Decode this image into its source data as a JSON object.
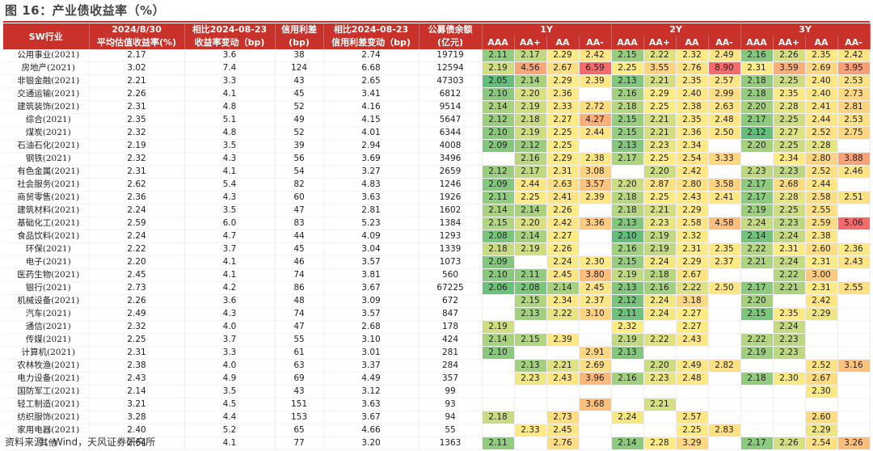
{
  "title": "图 16：产业债收益率（%）",
  "source": "资料来源：Wind，天风证券研究所",
  "colors": {
    "header_bg": "#c8322a",
    "header_text": "#ffffff",
    "scale_low": "#63be7b",
    "scale_mid": "#ffeb84",
    "scale_high": "#f8696b"
  },
  "headers": {
    "sw": "SW行业",
    "date_top": "2024/8/30",
    "date_sub": "平均估值收益率(%)",
    "cmp1_top": "相比2024-08-23",
    "cmp1_sub": "收益率变动（bp)",
    "spread_top": "信用利差",
    "spread_sub": "(bp)",
    "cmp2_top": "相比2024-08-23",
    "cmp2_sub": "信用利差变动（bp)",
    "bal_top": "公募债余额",
    "bal_sub": "(亿元)",
    "groups": [
      "1Y",
      "2Y",
      "3Y"
    ],
    "ratings": [
      "AAA",
      "AA+",
      "AA",
      "AA-"
    ]
  },
  "rows": [
    {
      "name": "公用事业(2021)",
      "y": "2.17",
      "d1": "3.6",
      "s": "38",
      "d2": "2.74",
      "b": "19719",
      "y1": [
        "2.11",
        "2.17",
        "2.29",
        "2.42"
      ],
      "y2": [
        "2.15",
        "2.22",
        "2.32",
        "2.49"
      ],
      "y3": [
        "2.16",
        "2.26",
        "2.35",
        "2.42"
      ]
    },
    {
      "name": "房地产(2021)",
      "y": "3.02",
      "d1": "7.4",
      "s": "124",
      "d2": "6.68",
      "b": "12594",
      "y1": [
        "2.19",
        "4.56",
        "2.67",
        "6.59"
      ],
      "y2": [
        "2.25",
        "3.55",
        "2.76",
        "8.90"
      ],
      "y3": [
        "2.31",
        "3.59",
        "2.69",
        "3.95"
      ]
    },
    {
      "name": "非银金融(2021)",
      "y": "2.21",
      "d1": "3.3",
      "s": "43",
      "d2": "2.65",
      "b": "47303",
      "y1": [
        "2.05",
        "2.14",
        "2.29",
        "2.39"
      ],
      "y2": [
        "2.13",
        "2.21",
        "2.35",
        "2.57"
      ],
      "y3": [
        "2.18",
        "2.25",
        "2.40",
        "2.53"
      ]
    },
    {
      "name": "交通运输(2021)",
      "y": "2.26",
      "d1": "4.1",
      "s": "45",
      "d2": "3.41",
      "b": "6812",
      "y1": [
        "2.10",
        "2.20",
        "2.36",
        ""
      ],
      "y2": [
        "2.16",
        "2.29",
        "2.40",
        "2.99"
      ],
      "y3": [
        "2.18",
        "2.35",
        "2.40",
        "2.73"
      ]
    },
    {
      "name": "建筑装饰(2021)",
      "y": "2.31",
      "d1": "4.8",
      "s": "52",
      "d2": "4.16",
      "b": "9514",
      "y1": [
        "2.14",
        "2.19",
        "2.33",
        "2.72"
      ],
      "y2": [
        "2.18",
        "2.25",
        "2.38",
        "2.63"
      ],
      "y3": [
        "2.20",
        "2.28",
        "2.41",
        "2.81"
      ]
    },
    {
      "name": "综合(2021)",
      "y": "2.35",
      "d1": "5.1",
      "s": "49",
      "d2": "4.15",
      "b": "5647",
      "y1": [
        "2.12",
        "2.18",
        "2.27",
        "4.27"
      ],
      "y2": [
        "2.15",
        "2.21",
        "2.35",
        "2.48"
      ],
      "y3": [
        "2.17",
        "2.25",
        "2.44",
        "2.53"
      ]
    },
    {
      "name": "煤炭(2021)",
      "y": "2.32",
      "d1": "4.8",
      "s": "52",
      "d2": "4.01",
      "b": "6344",
      "y1": [
        "2.10",
        "2.19",
        "2.25",
        "2.44"
      ],
      "y2": [
        "2.15",
        "2.21",
        "2.36",
        "2.50"
      ],
      "y3": [
        "2.12",
        "2.27",
        "2.52",
        "2.75"
      ]
    },
    {
      "name": "石油石化(2021)",
      "y": "2.19",
      "d1": "3.5",
      "s": "39",
      "d2": "2.94",
      "b": "4008",
      "y1": [
        "2.09",
        "2.12",
        "2.25",
        ""
      ],
      "y2": [
        "2.13",
        "2.23",
        "2.34",
        ""
      ],
      "y3": [
        "2.20",
        "2.25",
        "2.28",
        ""
      ]
    },
    {
      "name": "钢铁(2021)",
      "y": "2.32",
      "d1": "4.3",
      "s": "56",
      "d2": "3.69",
      "b": "3496",
      "y1": [
        "",
        "2.16",
        "2.29",
        "2.38"
      ],
      "y2": [
        "2.17",
        "2.25",
        "2.54",
        "3.33"
      ],
      "y3": [
        "",
        "2.34",
        "2.80",
        "3.88"
      ]
    },
    {
      "name": "有色金属(2021)",
      "y": "2.31",
      "d1": "4.1",
      "s": "54",
      "d2": "3.27",
      "b": "2659",
      "y1": [
        "2.12",
        "2.17",
        "2.31",
        "3.08"
      ],
      "y2": [
        "",
        "2.20",
        "2.42",
        ""
      ],
      "y3": [
        "2.23",
        "2.23",
        "2.52",
        "2.46"
      ]
    },
    {
      "name": "社会服务(2021)",
      "y": "2.62",
      "d1": "5.4",
      "s": "82",
      "d2": "4.83",
      "b": "1246",
      "y1": [
        "2.09",
        "2.44",
        "2.63",
        "3.57"
      ],
      "y2": [
        "2.20",
        "2.87",
        "2.80",
        "3.58"
      ],
      "y3": [
        "2.17",
        "2.68",
        "2.44",
        ""
      ]
    },
    {
      "name": "商贸零售(2021)",
      "y": "2.36",
      "d1": "4.3",
      "s": "60",
      "d2": "3.63",
      "b": "1926",
      "y1": [
        "2.11",
        "2.25",
        "2.41",
        "2.39"
      ],
      "y2": [
        "2.18",
        "2.25",
        "2.43",
        "2.41"
      ],
      "y3": [
        "2.17",
        "2.28",
        "2.58",
        "2.51"
      ]
    },
    {
      "name": "建筑材料(2021)",
      "y": "2.24",
      "d1": "3.5",
      "s": "47",
      "d2": "2.81",
      "b": "1602",
      "y1": [
        "2.14",
        "2.14",
        "2.26",
        ""
      ],
      "y2": [
        "2.18",
        "2.21",
        "2.29",
        ""
      ],
      "y3": [
        "2.19",
        "2.25",
        "2.55",
        ""
      ]
    },
    {
      "name": "基础化工(2021)",
      "y": "2.59",
      "d1": "6.0",
      "s": "83",
      "d2": "5.23",
      "b": "1384",
      "y1": [
        "2.15",
        "2.20",
        "2.42",
        "3.36"
      ],
      "y2": [
        "2.13",
        "2.23",
        "2.58",
        "4.58"
      ],
      "y3": [
        "2.24",
        "2.23",
        "2.59",
        "5.06"
      ]
    },
    {
      "name": "食品饮料(2021)",
      "y": "2.24",
      "d1": "4.7",
      "s": "44",
      "d2": "4.09",
      "b": "1293",
      "y1": [
        "2.08",
        "2.14",
        "2.27",
        ""
      ],
      "y2": [
        "2.10",
        "2.19",
        "2.32",
        ""
      ],
      "y3": [
        "2.14",
        "2.24",
        "2.38",
        ""
      ]
    },
    {
      "name": "环保(2021)",
      "y": "2.22",
      "d1": "3.7",
      "s": "45",
      "d2": "3.04",
      "b": "1339",
      "y1": [
        "2.18",
        "2.19",
        "2.26",
        ""
      ],
      "y2": [
        "2.16",
        "2.19",
        "2.31",
        "2.35"
      ],
      "y3": [
        "2.22",
        "2.31",
        "2.60",
        "2.36"
      ]
    },
    {
      "name": "电子(2021)",
      "y": "2.20",
      "d1": "4.1",
      "s": "46",
      "d2": "3.57",
      "b": "1073",
      "y1": [
        "2.09",
        "",
        "2.24",
        "2.30"
      ],
      "y2": [
        "2.15",
        "2.24",
        "2.29",
        "2.37"
      ],
      "y3": [
        "2.21",
        "2.24",
        "2.31",
        "2.43"
      ]
    },
    {
      "name": "医药生物(2021)",
      "y": "2.45",
      "d1": "4.1",
      "s": "74",
      "d2": "3.81",
      "b": "560",
      "y1": [
        "2.10",
        "2.11",
        "2.45",
        "3.80"
      ],
      "y2": [
        "2.19",
        "2.18",
        "2.67",
        ""
      ],
      "y3": [
        "",
        "2.22",
        "3.00",
        ""
      ]
    },
    {
      "name": "银行(2021)",
      "y": "2.73",
      "d1": "4.2",
      "s": "86",
      "d2": "3.67",
      "b": "67225",
      "y1": [
        "2.06",
        "2.08",
        "2.14",
        "2.45"
      ],
      "y2": [
        "2.13",
        "2.16",
        "2.22",
        "2.50"
      ],
      "y3": [
        "2.17",
        "2.21",
        "2.31",
        "2.55"
      ]
    },
    {
      "name": "机械设备(2021)",
      "y": "2.26",
      "d1": "3.6",
      "s": "48",
      "d2": "3.09",
      "b": "672",
      "y1": [
        "",
        "2.15",
        "2.34",
        "2.37"
      ],
      "y2": [
        "2.12",
        "2.24",
        "3.18",
        ""
      ],
      "y3": [
        "2.20",
        "",
        "2.42",
        ""
      ]
    },
    {
      "name": "汽车(2021)",
      "y": "2.49",
      "d1": "4.3",
      "s": "74",
      "d2": "3.57",
      "b": "847",
      "y1": [
        "",
        "2.13",
        "2.22",
        "3.10"
      ],
      "y2": [
        "2.11",
        "2.24",
        "2.27",
        ""
      ],
      "y3": [
        "2.15",
        "2.35",
        "2.29",
        ""
      ]
    },
    {
      "name": "通信(2021)",
      "y": "2.32",
      "d1": "4.0",
      "s": "47",
      "d2": "2.68",
      "b": "178",
      "y1": [
        "2.19",
        "",
        "",
        ""
      ],
      "y2": [
        "2.32",
        "",
        "2.27",
        ""
      ],
      "y3": [
        "",
        "2.24",
        "",
        ""
      ]
    },
    {
      "name": "传媒(2021)",
      "y": "2.25",
      "d1": "3.7",
      "s": "55",
      "d2": "3.10",
      "b": "424",
      "y1": [
        "2.14",
        "2.15",
        "2.39",
        ""
      ],
      "y2": [
        "2.19",
        "2.22",
        "2.43",
        ""
      ],
      "y3": [
        "2.22",
        "2.23",
        "",
        ""
      ]
    },
    {
      "name": "计算机(2021)",
      "y": "2.31",
      "d1": "3.3",
      "s": "61",
      "d2": "3.01",
      "b": "281",
      "y1": [
        "2.10",
        "",
        "",
        "2.91"
      ],
      "y2": [
        "2.13",
        "",
        "",
        ""
      ],
      "y3": [
        "2.19",
        "2.23",
        "",
        ""
      ]
    },
    {
      "name": "农林牧渔(2021)",
      "y": "2.38",
      "d1": "4.0",
      "s": "63",
      "d2": "3.37",
      "b": "284",
      "y1": [
        "",
        "2.13",
        "2.21",
        "2.69"
      ],
      "y2": [
        "",
        "2.20",
        "2.49",
        "2.82"
      ],
      "y3": [
        "",
        "",
        "2.52",
        "3.16"
      ]
    },
    {
      "name": "电力设备(2021)",
      "y": "2.43",
      "d1": "4.9",
      "s": "69",
      "d2": "4.49",
      "b": "357",
      "y1": [
        "",
        "2.23",
        "2.43",
        "3.96"
      ],
      "y2": [
        "2.16",
        "2.23",
        "2.48",
        ""
      ],
      "y3": [
        "2.18",
        "2.30",
        "2.67",
        ""
      ]
    },
    {
      "name": "国防军工(2021)",
      "y": "2.14",
      "d1": "3.5",
      "s": "43",
      "d2": "3.12",
      "b": "99",
      "y1": [
        "",
        "",
        "",
        ""
      ],
      "y2": [
        "",
        "",
        "",
        ""
      ],
      "y3": [
        "",
        "",
        "2.30",
        ""
      ]
    },
    {
      "name": "轻工制造(2021)",
      "y": "3.21",
      "d1": "4.5",
      "s": "151",
      "d2": "3.63",
      "b": "93",
      "y1": [
        "",
        "",
        "",
        "3.68"
      ],
      "y2": [
        "",
        "2.21",
        "",
        ""
      ],
      "y3": [
        "",
        "",
        "",
        ""
      ]
    },
    {
      "name": "纺织服饰(2021)",
      "y": "3.28",
      "d1": "4.4",
      "s": "153",
      "d2": "3.67",
      "b": "94",
      "y1": [
        "2.18",
        "",
        "2.73",
        ""
      ],
      "y2": [
        "2.24",
        "",
        "2.57",
        ""
      ],
      "y3": [
        "",
        "",
        "2.60",
        ""
      ]
    },
    {
      "name": "家用电器(2021)",
      "y": "2.40",
      "d1": "5.2",
      "s": "65",
      "d2": "4.66",
      "b": "55",
      "y1": [
        "",
        "2.33",
        "2.45",
        ""
      ],
      "y2": [
        "",
        "",
        "2.25",
        "2.83"
      ],
      "y3": [
        "",
        "",
        "2.29",
        ""
      ]
    },
    {
      "name": "其他",
      "y": "2.64",
      "d1": "4.1",
      "s": "77",
      "d2": "3.20",
      "b": "1363",
      "y1": [
        "2.11",
        "",
        "2.76",
        ""
      ],
      "y2": [
        "2.14",
        "2.28",
        "3.29",
        ""
      ],
      "y3": [
        "2.17",
        "2.26",
        "2.54",
        "3.26"
      ]
    }
  ]
}
